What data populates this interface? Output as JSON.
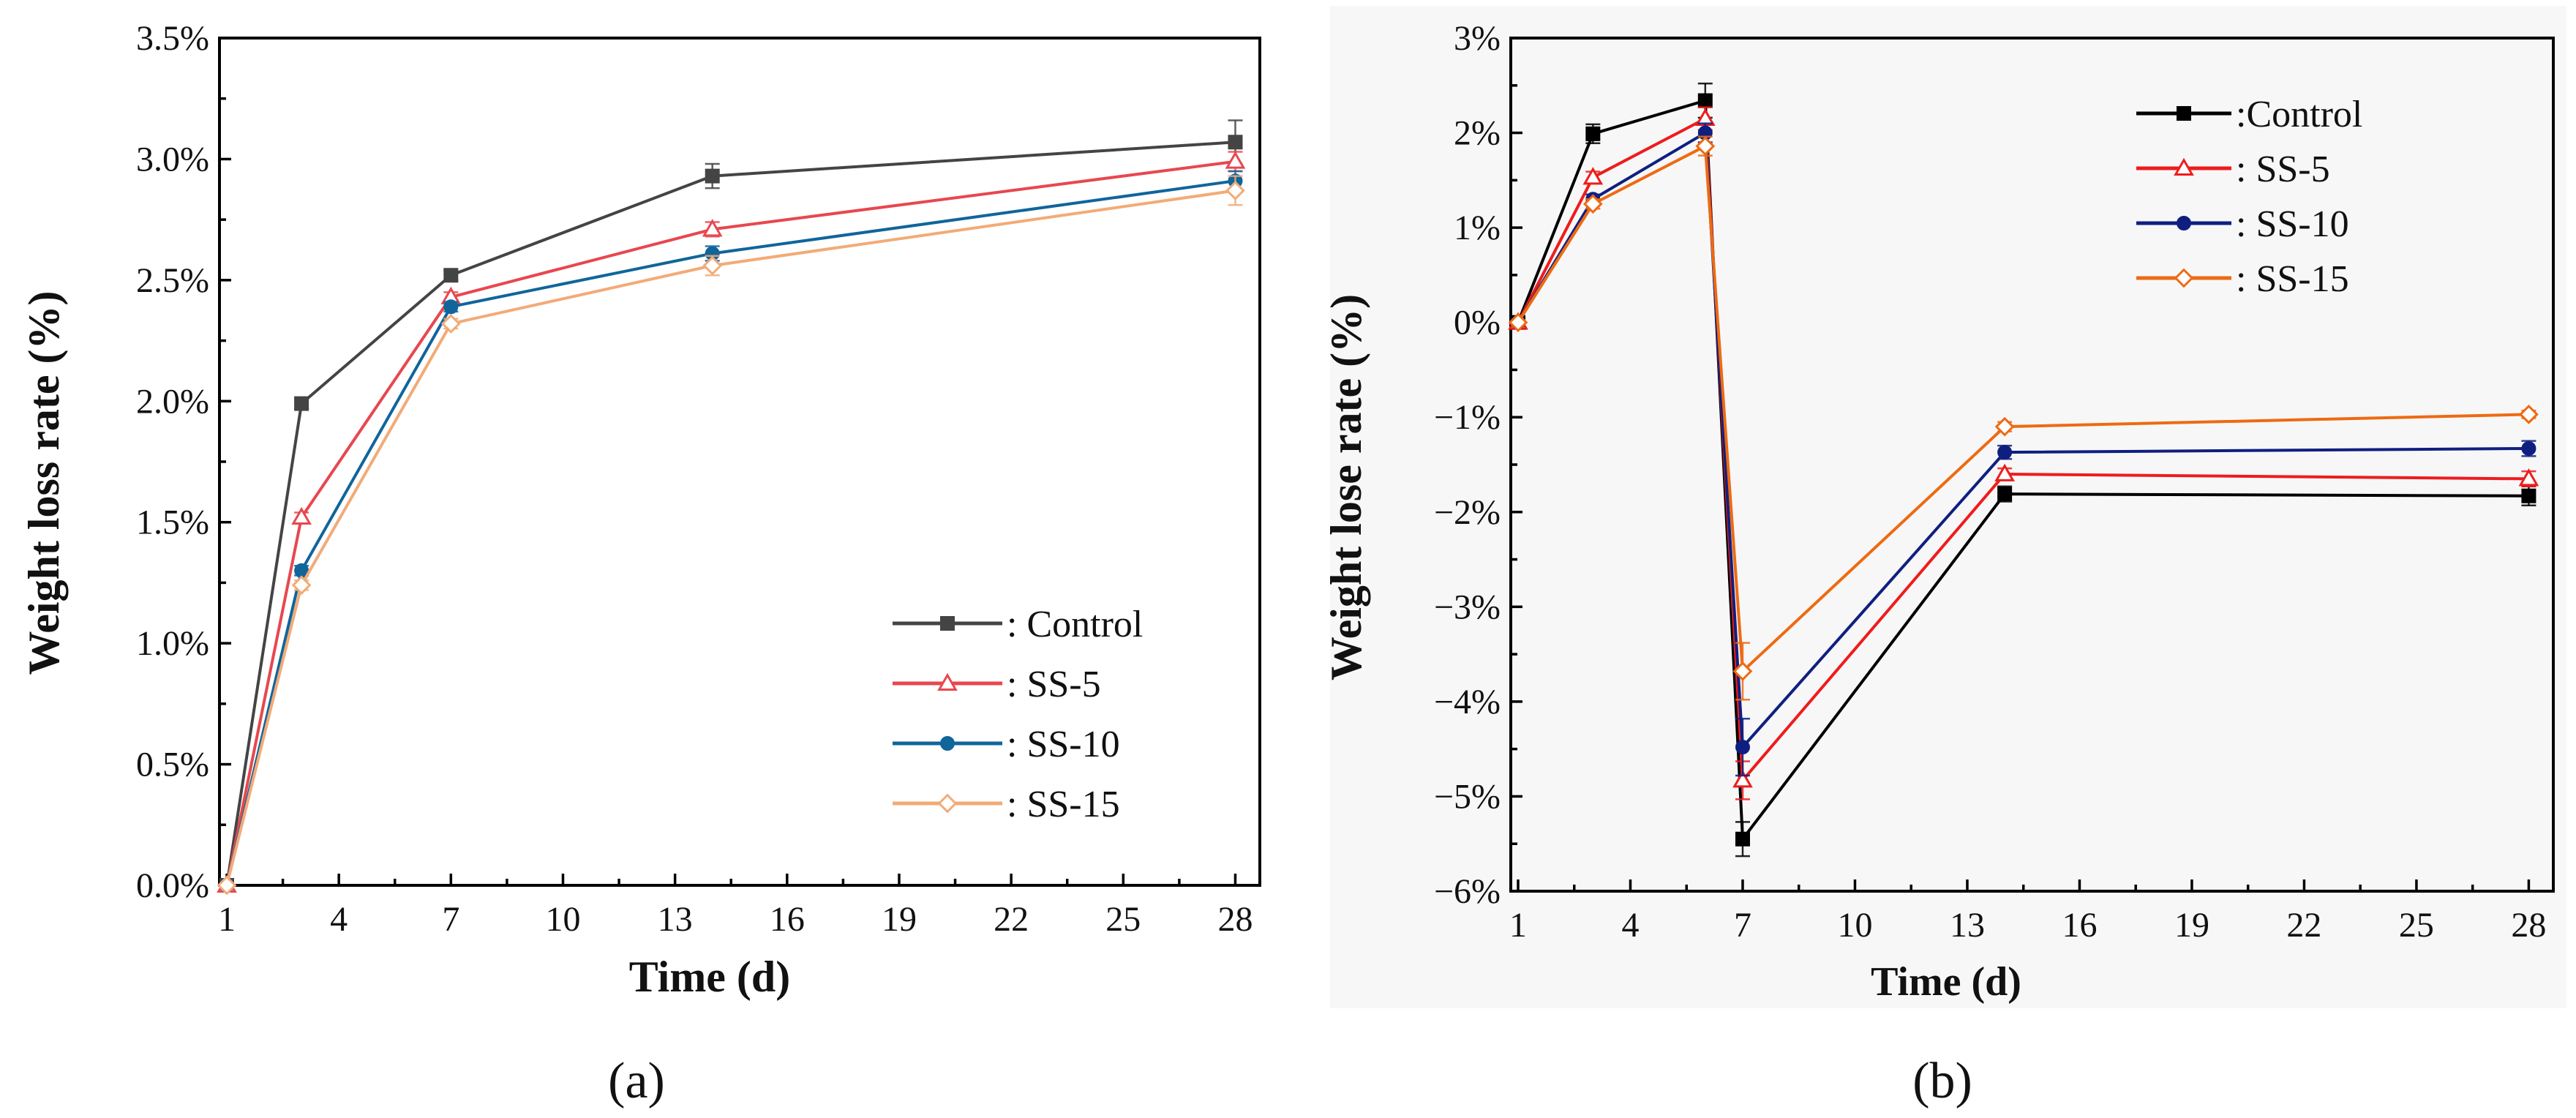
{
  "chart_data": [
    {
      "type": "line",
      "panel_label": "(a)",
      "xlabel": "Time (d)",
      "ylabel": "Weight loss rate (%)",
      "xlim": [
        1,
        28.5
      ],
      "ylim": [
        0,
        3.5
      ],
      "xticks": [
        1,
        4,
        7,
        10,
        13,
        16,
        19,
        22,
        25,
        28
      ],
      "xtick_labels": [
        "1",
        "4",
        "7",
        "10",
        "13",
        "16",
        "19",
        "22",
        "25",
        "28"
      ],
      "yticks": [
        0,
        0.5,
        1.0,
        1.5,
        2.0,
        2.5,
        3.0,
        3.5
      ],
      "ytick_labels": [
        "0.0%",
        "0.5%",
        "1.0%",
        "1.5%",
        "2.0%",
        "2.5%",
        "3.0%",
        "3.5%"
      ],
      "legend_position": "lower-right",
      "x": [
        1,
        3,
        7,
        14,
        28
      ],
      "series": [
        {
          "name": ": Control",
          "color": "#444444",
          "marker": "square",
          "values": [
            0,
            1.99,
            2.52,
            2.93,
            3.07
          ],
          "errors": [
            0,
            0.02,
            0.02,
            0.05,
            0.09
          ]
        },
        {
          "name": ": SS-5",
          "color": "#e8474f",
          "marker": "triangle",
          "values": [
            0,
            1.52,
            2.43,
            2.71,
            2.99
          ],
          "errors": [
            0,
            0.02,
            0.02,
            0.03,
            0.04
          ]
        },
        {
          "name": ": SS-10",
          "color": "#10659b",
          "marker": "circle",
          "values": [
            0,
            1.3,
            2.39,
            2.61,
            2.91
          ],
          "errors": [
            0,
            0.02,
            0.02,
            0.03,
            0.04
          ]
        },
        {
          "name": ": SS-15",
          "color": "#f2ab77",
          "marker": "diamond",
          "values": [
            0,
            1.24,
            2.32,
            2.56,
            2.87
          ],
          "errors": [
            0,
            0.02,
            0.02,
            0.04,
            0.06
          ]
        }
      ]
    },
    {
      "type": "line",
      "panel_label": "(b)",
      "xlabel": "Time (d)",
      "ylabel": "Weight lose rate (%)",
      "xlim": [
        1,
        28.5
      ],
      "ylim": [
        -6,
        3
      ],
      "xticks": [
        1,
        4,
        7,
        10,
        13,
        16,
        19,
        22,
        25,
        28
      ],
      "xtick_labels": [
        "1",
        "4",
        "7",
        "10",
        "13",
        "16",
        "19",
        "22",
        "25",
        "28"
      ],
      "yticks": [
        -6,
        -5,
        -4,
        -3,
        -2,
        -1,
        0,
        1,
        2,
        3
      ],
      "ytick_labels": [
        "−6%",
        "−5%",
        "−4%",
        "−3%",
        "−2%",
        "−1%",
        "0%",
        "1%",
        "2%",
        "3%"
      ],
      "legend_position": "top-right",
      "x": [
        1,
        3,
        6,
        7,
        14,
        28
      ],
      "series": [
        {
          "name": ":Control",
          "color": "#000000",
          "marker": "square",
          "values": [
            0,
            1.99,
            2.34,
            -5.45,
            -1.81,
            -1.83
          ],
          "errors": [
            0,
            0.1,
            0.18,
            0.18,
            0.08,
            0.1
          ]
        },
        {
          "name": ": SS-5",
          "color": "#ee1c1c",
          "marker": "triangle",
          "values": [
            0,
            1.53,
            2.15,
            -4.83,
            -1.6,
            -1.65
          ],
          "errors": [
            0,
            0.06,
            0.12,
            0.2,
            0.06,
            0.08
          ]
        },
        {
          "name": ": SS-10",
          "color": "#0f1f80",
          "marker": "circle",
          "values": [
            0,
            1.3,
            2.0,
            -4.48,
            -1.37,
            -1.33
          ],
          "errors": [
            0,
            0.05,
            0.1,
            0.3,
            0.07,
            0.08
          ]
        },
        {
          "name": ": SS-15",
          "color": "#ee6a12",
          "marker": "diamond",
          "values": [
            0,
            1.25,
            1.86,
            -3.68,
            -1.1,
            -0.97
          ],
          "errors": [
            0,
            0.05,
            0.1,
            0.3,
            0.05,
            0.04
          ]
        }
      ]
    }
  ]
}
